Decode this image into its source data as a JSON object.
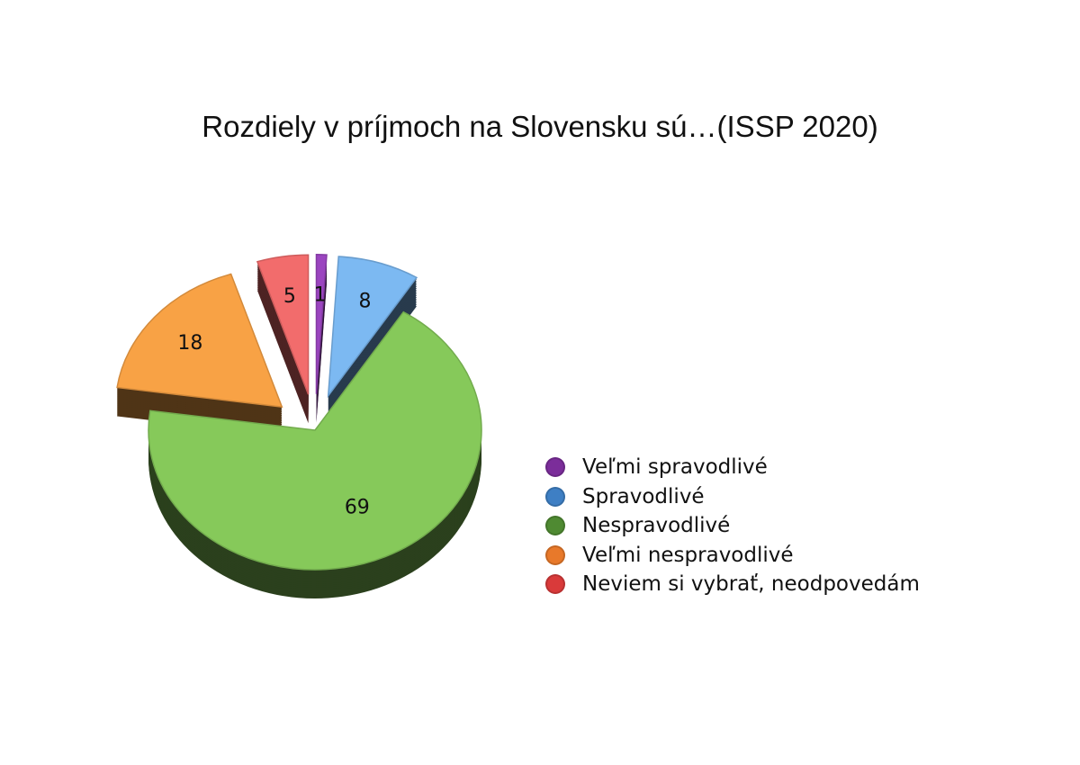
{
  "chart_data": {
    "type": "pie",
    "style": "3d-exploded",
    "title": "Rozdiely v príjmoch na Slovensku sú…(ISSP 2020)",
    "legend_position": "right",
    "slices": [
      {
        "name": "Veľmi spravodlivé",
        "value": 1,
        "label": "1",
        "color": "#9b45c0",
        "legend_color": "#7b2d9a",
        "exploded": true
      },
      {
        "name": "Spravodlivé",
        "value": 8,
        "label": "8",
        "color": "#7cb9f2",
        "legend_color": "#3e7fc4",
        "exploded": true
      },
      {
        "name": "Nespravodlivé",
        "value": 69,
        "label": "69",
        "color": "#86c95a",
        "legend_color": "#4f8a32",
        "exploded": false
      },
      {
        "name": "Veľmi nespravodlivé",
        "value": 18,
        "label": "18",
        "color": "#f8a245",
        "legend_color": "#e8792a",
        "exploded": true
      },
      {
        "name": "Neviem si vybrať, neodpovedám",
        "value": 5,
        "label": "5",
        "color": "#f26c6c",
        "legend_color": "#d93a3a",
        "exploded": true
      }
    ]
  }
}
